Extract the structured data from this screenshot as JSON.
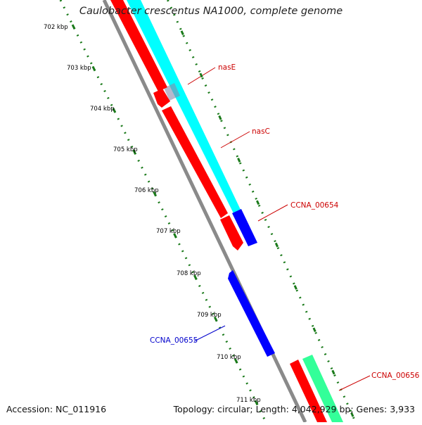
{
  "title": "Caulobacter crescentus NA1000, complete genome",
  "accession": "Accession: NC_011916",
  "topology": "Topology: circular; Length: 4,042,929 bp; Genes: 3,933",
  "colors": {
    "forward_cds": "#ff0000",
    "forward_gene": "#00ffff",
    "reverse_cds": "#0000ff",
    "rna": "#33ff99",
    "backbone": "#888888",
    "tick": "#1a7a1a",
    "label_forward": "#cc0000",
    "label_reverse": "#0000cc"
  },
  "ticks": [
    {
      "label": "702 kbp"
    },
    {
      "label": "703 kbp"
    },
    {
      "label": "704 kbp"
    },
    {
      "label": "705 kbp"
    },
    {
      "label": "706 kbp"
    },
    {
      "label": "707 kbp"
    },
    {
      "label": "708 kbp"
    },
    {
      "label": "709 kbp"
    },
    {
      "label": "710 kbp"
    },
    {
      "label": "711 kbp"
    }
  ],
  "gene_labels": [
    {
      "name": "nasE",
      "strand": "forward"
    },
    {
      "name": "nasC",
      "strand": "forward"
    },
    {
      "name": "CCNA_00654",
      "strand": "forward"
    },
    {
      "name": "CCNA_00655",
      "strand": "reverse"
    },
    {
      "name": "CCNA_00656",
      "strand": "forward"
    }
  ]
}
